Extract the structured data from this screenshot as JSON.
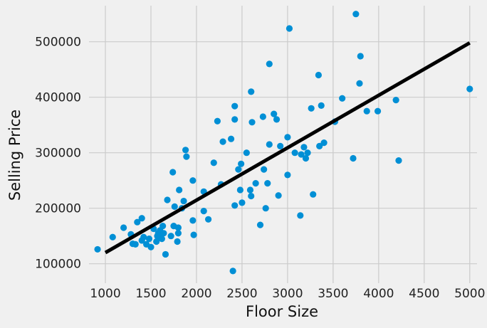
{
  "chart_data": {
    "type": "scatter",
    "title": "",
    "xlabel": "Floor Size",
    "ylabel": "Selling Price",
    "xlim": [
      820,
      5080
    ],
    "ylim": [
      65000,
      565000
    ],
    "xticks": [
      1000,
      1500,
      2000,
      2500,
      3000,
      3500,
      4000,
      4500,
      5000
    ],
    "yticks": [
      100000,
      200000,
      300000,
      400000,
      500000
    ],
    "grid": true,
    "legend": "none",
    "colors": {
      "points": "#008fd5",
      "line": "#000000",
      "background": "#f0f0f0",
      "grid": "#cbcbcb"
    },
    "series": [
      {
        "kind": "scatter",
        "points": [
          [
            914,
            126000
          ],
          [
            1080,
            148000
          ],
          [
            1200,
            165000
          ],
          [
            1280,
            153000
          ],
          [
            1300,
            136000
          ],
          [
            1330,
            135000
          ],
          [
            1350,
            175000
          ],
          [
            1400,
            182000
          ],
          [
            1400,
            142000
          ],
          [
            1420,
            148000
          ],
          [
            1450,
            135000
          ],
          [
            1480,
            145000
          ],
          [
            1500,
            130000
          ],
          [
            1530,
            163000
          ],
          [
            1560,
            140000
          ],
          [
            1570,
            150000
          ],
          [
            1580,
            155000
          ],
          [
            1600,
            148000
          ],
          [
            1600,
            160000
          ],
          [
            1620,
            145000
          ],
          [
            1630,
            168000
          ],
          [
            1640,
            155000
          ],
          [
            1660,
            117000
          ],
          [
            1680,
            215000
          ],
          [
            1720,
            150000
          ],
          [
            1740,
            265000
          ],
          [
            1750,
            168000
          ],
          [
            1760,
            203000
          ],
          [
            1790,
            140000
          ],
          [
            1800,
            165000
          ],
          [
            1800,
            155000
          ],
          [
            1810,
            233000
          ],
          [
            1840,
            200000
          ],
          [
            1860,
            213000
          ],
          [
            1880,
            305000
          ],
          [
            1890,
            293000
          ],
          [
            1960,
            250000
          ],
          [
            1960,
            178000
          ],
          [
            1970,
            152000
          ],
          [
            2080,
            195000
          ],
          [
            2080,
            230000
          ],
          [
            2130,
            180000
          ],
          [
            2190,
            282000
          ],
          [
            2230,
            357000
          ],
          [
            2270,
            243000
          ],
          [
            2290,
            320000
          ],
          [
            2380,
            325000
          ],
          [
            2400,
            87000
          ],
          [
            2420,
            205000
          ],
          [
            2420,
            384000
          ],
          [
            2420,
            360000
          ],
          [
            2460,
            270000
          ],
          [
            2480,
            233000
          ],
          [
            2490,
            280000
          ],
          [
            2500,
            210000
          ],
          [
            2550,
            300000
          ],
          [
            2590,
            233000
          ],
          [
            2600,
            222000
          ],
          [
            2600,
            410000
          ],
          [
            2610,
            355000
          ],
          [
            2650,
            245000
          ],
          [
            2700,
            170000
          ],
          [
            2730,
            365000
          ],
          [
            2740,
            270000
          ],
          [
            2760,
            200000
          ],
          [
            2780,
            245000
          ],
          [
            2800,
            460000
          ],
          [
            2800,
            315000
          ],
          [
            2850,
            370000
          ],
          [
            2880,
            360000
          ],
          [
            2900,
            223000
          ],
          [
            2920,
            312000
          ],
          [
            3000,
            328000
          ],
          [
            3000,
            260000
          ],
          [
            3020,
            524000
          ],
          [
            3080,
            300000
          ],
          [
            3140,
            187000
          ],
          [
            3150,
            297000
          ],
          [
            3180,
            310000
          ],
          [
            3200,
            290000
          ],
          [
            3220,
            300000
          ],
          [
            3260,
            380000
          ],
          [
            3280,
            225000
          ],
          [
            3340,
            440000
          ],
          [
            3350,
            312000
          ],
          [
            3370,
            385000
          ],
          [
            3400,
            318000
          ],
          [
            3520,
            356000
          ],
          [
            3600,
            398000
          ],
          [
            3720,
            290000
          ],
          [
            3750,
            550000
          ],
          [
            3790,
            425000
          ],
          [
            3800,
            474000
          ],
          [
            3870,
            375000
          ],
          [
            3990,
            375000
          ],
          [
            4190,
            395000
          ],
          [
            4220,
            286000
          ],
          [
            5000,
            415000
          ]
        ]
      },
      {
        "kind": "line",
        "points": [
          [
            1000,
            120000
          ],
          [
            5000,
            498000
          ]
        ]
      }
    ]
  }
}
